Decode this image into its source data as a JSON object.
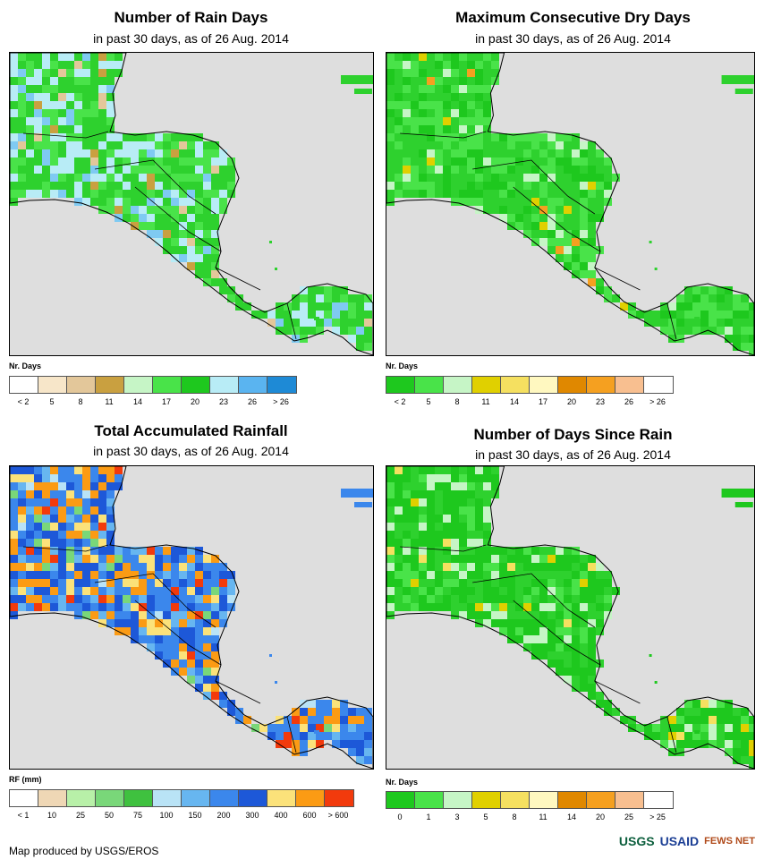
{
  "panels": [
    {
      "title": "Number of Rain Days",
      "subtitle": "in past 30 days, as of 26 Aug. 2014",
      "legend_title": "Nr. Days",
      "legend_colors": [
        "#ffffff",
        "#f7e6c9",
        "#e3c79a",
        "#c9a040",
        "#c6f5c6",
        "#49e349",
        "#1ec81e",
        "#b8ecf6",
        "#5ab4f0",
        "#1e8ad6"
      ],
      "legend_ticks": [
        "< 2",
        "5",
        "8",
        "11",
        "14",
        "17",
        "20",
        "23",
        "26",
        "> 26"
      ],
      "palette": [
        "#2ed12e",
        "#49e349",
        "#b8ecf6",
        "#7fcaf2",
        "#c9a040",
        "#e3c79a"
      ],
      "weights": [
        5,
        3,
        3,
        1,
        0.3,
        0.2
      ]
    },
    {
      "title": "Maximum Consecutive Dry Days",
      "subtitle": "in past 30 days, as of 26 Aug. 2014",
      "legend_title": "Nr. Days",
      "legend_colors": [
        "#1ec81e",
        "#49e349",
        "#c6f5c6",
        "#e0d000",
        "#f5e060",
        "#fff8c0",
        "#e08800",
        "#f5a020",
        "#f8bf90",
        "#ffffff"
      ],
      "legend_ticks": [
        "< 2",
        "5",
        "8",
        "11",
        "14",
        "17",
        "20",
        "23",
        "26",
        "> 26"
      ],
      "palette": [
        "#2ed12e",
        "#49e349",
        "#1ec81e",
        "#c6f5c6",
        "#e0d000",
        "#f5a020"
      ],
      "weights": [
        6,
        4,
        3,
        1,
        0.3,
        0.15
      ]
    },
    {
      "title": "Total Accumulated Rainfall",
      "subtitle": "in past 30 days, as of 26 Aug. 2014",
      "legend_title": "RF (mm)",
      "legend_colors": [
        "#ffffff",
        "#efd7b5",
        "#b8f0a8",
        "#79d779",
        "#3fc13f",
        "#b9e3f6",
        "#67b6f0",
        "#3b87ec",
        "#1d58d8",
        "#fbe27a",
        "#fb9b14",
        "#f23a0c"
      ],
      "legend_ticks": [
        "< 1",
        "10",
        "25",
        "50",
        "75",
        "100",
        "150",
        "200",
        "300",
        "400",
        "600",
        "> 600"
      ],
      "palette": [
        "#3b87ec",
        "#1d58d8",
        "#67b6f0",
        "#fb9b14",
        "#fbe27a",
        "#79d779",
        "#f23a0c",
        "#b9e3f6"
      ],
      "weights": [
        5,
        4,
        2,
        3,
        1.5,
        0.8,
        0.6,
        0.5
      ]
    },
    {
      "title": "Number of Days Since Rain",
      "subtitle": "in past 30 days, as of 26 Aug. 2014",
      "legend_title": "Nr. Days",
      "legend_colors": [
        "#1ec81e",
        "#49e349",
        "#c6f5c6",
        "#e0d000",
        "#f5e060",
        "#fff8c0",
        "#e08800",
        "#f5a020",
        "#f8bf90",
        "#ffffff"
      ],
      "legend_ticks": [
        "0",
        "1",
        "3",
        "5",
        "8",
        "11",
        "14",
        "20",
        "25",
        "> 25"
      ],
      "palette": [
        "#1ec81e",
        "#2ed12e",
        "#49e349",
        "#c6f5c6",
        "#e0d000",
        "#f5e060"
      ],
      "weights": [
        6,
        4,
        2,
        1.5,
        0.3,
        0.3
      ]
    }
  ],
  "footer": "Map produced by USGS/EROS",
  "logos": {
    "usgs": "USGS",
    "usaid": "USAID",
    "fews": "FEWS NET"
  }
}
